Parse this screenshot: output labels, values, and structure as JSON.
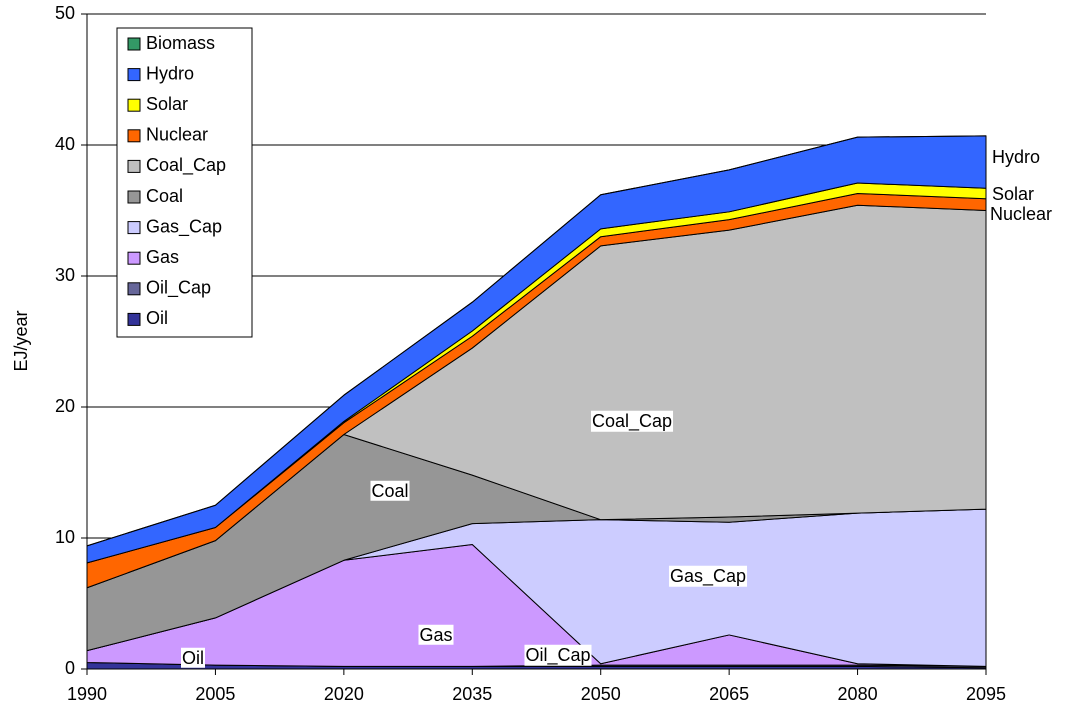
{
  "chart_data": {
    "type": "area",
    "stacked": true,
    "y_label": "EJ/year",
    "categories": [
      "1990",
      "2005",
      "2020",
      "2035",
      "2050",
      "2065",
      "2080",
      "2095"
    ],
    "ylim": [
      0,
      50
    ],
    "yticks": [
      0,
      10,
      20,
      30,
      40,
      50
    ],
    "grid": true,
    "legend": "upper left",
    "series": [
      {
        "name": "Oil",
        "color": "#333399",
        "values": [
          0.5,
          0.3,
          0.2,
          0.2,
          0.2,
          0.2,
          0.2,
          0.1
        ]
      },
      {
        "name": "Oil_Cap",
        "color": "#666699",
        "values": [
          0,
          0,
          0,
          0,
          0.1,
          0.1,
          0.1,
          0.1
        ]
      },
      {
        "name": "Gas",
        "color": "#cc99ff",
        "values": [
          0.9,
          3.6,
          8.1,
          9.3,
          0.1,
          2.3,
          0.1,
          0
        ]
      },
      {
        "name": "Gas_Cap",
        "color": "#ccccff",
        "values": [
          0,
          0,
          0,
          1.6,
          11.0,
          8.6,
          11.5,
          12.0
        ]
      },
      {
        "name": "Coal",
        "color": "#969696",
        "values": [
          4.8,
          5.9,
          9.6,
          3.7,
          0,
          0.4,
          0,
          0
        ]
      },
      {
        "name": "Coal_Cap",
        "color": "#c0c0c0",
        "values": [
          0,
          0,
          0,
          9.7,
          20.9,
          21.9,
          23.5,
          22.8
        ]
      },
      {
        "name": "Nuclear",
        "color": "#ff6600",
        "values": [
          1.9,
          1.0,
          0.9,
          0.9,
          0.7,
          0.8,
          0.9,
          0.9
        ]
      },
      {
        "name": "Solar",
        "color": "#ffff00",
        "values": [
          0,
          0,
          0.1,
          0.4,
          0.6,
          0.6,
          0.8,
          0.8
        ]
      },
      {
        "name": "Hydro",
        "color": "#3366ff",
        "values": [
          1.3,
          1.7,
          2.0,
          2.2,
          2.6,
          3.2,
          3.5,
          4.0
        ]
      },
      {
        "name": "Biomass",
        "color": "#339966",
        "values": [
          0,
          0,
          0,
          0,
          0,
          0,
          0,
          0
        ]
      }
    ],
    "annotations": [
      "Coal_Cap",
      "Coal",
      "Gas_Cap",
      "Gas",
      "Oil",
      "Oil_Cap",
      "Hydro",
      "Solar",
      "Nuclear"
    ]
  }
}
